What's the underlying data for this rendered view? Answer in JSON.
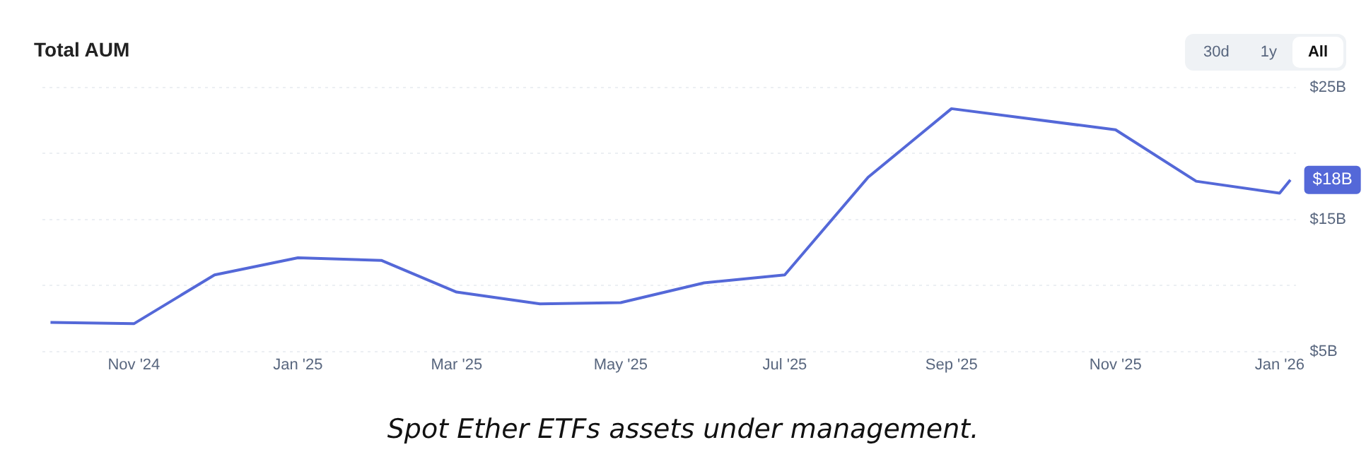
{
  "chart_data": {
    "type": "line",
    "title": "Total AUM",
    "annotations": [
      "30d",
      "1y",
      "All",
      "Spot Ether ETFs assets under management."
    ],
    "x": [
      "2024-10-01",
      "2024-11-01",
      "2024-12-01",
      "2025-01-01",
      "2025-02-01",
      "2025-03-01",
      "2025-04-01",
      "2025-05-01",
      "2025-06-01",
      "2025-07-01",
      "2025-08-01",
      "2025-09-01",
      "2025-11-01",
      "2025-12-01",
      "2026-01-01",
      "2026-01-05"
    ],
    "series": [
      {
        "color": "#5468d8",
        "values": [
          7.2,
          7.1,
          10.8,
          12.1,
          11.9,
          9.5,
          8.6,
          8.7,
          10.2,
          10.8,
          18.2,
          23.4,
          21.8,
          17.9,
          17.0,
          18
        ],
        "value_labels": [
          null,
          null,
          null,
          null,
          null,
          null,
          null,
          null,
          null,
          null,
          null,
          null,
          null,
          null,
          null,
          "$18B"
        ]
      }
    ],
    "xlim": [
      "2024-09-28",
      "2026-01-07"
    ],
    "xticks": [
      {
        "value": "2024-11-01",
        "label": "Nov '24"
      },
      {
        "value": "2025-01-01",
        "label": "Jan '25"
      },
      {
        "value": "2025-03-01",
        "label": "Mar '25"
      },
      {
        "value": "2025-05-01",
        "label": "May '25"
      },
      {
        "value": "2025-07-01",
        "label": "Jul '25"
      },
      {
        "value": "2025-09-01",
        "label": "Sep '25"
      },
      {
        "value": "2025-11-01",
        "label": "Nov '25"
      },
      {
        "value": "2026-01-01",
        "label": "Jan '26"
      }
    ],
    "ylim": [
      5,
      25
    ],
    "yticks": [
      {
        "value": 5,
        "label": "$5B"
      },
      {
        "value": 10,
        "label": null
      },
      {
        "value": 15,
        "label": "$15B"
      },
      {
        "value": 20,
        "label": null
      },
      {
        "value": 25,
        "label": "$25B"
      }
    ],
    "grid": "y",
    "legend": false,
    "marker": "none",
    "line_style": "solid"
  }
}
